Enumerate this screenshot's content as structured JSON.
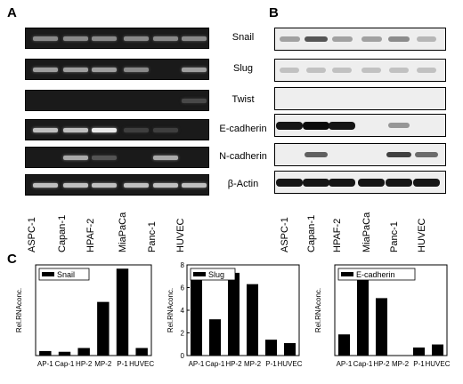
{
  "panels": {
    "a": "A",
    "b": "B",
    "c": "C"
  },
  "lanes": [
    "ASPC-1",
    "Capan-1",
    "HPAF-2",
    "MiaPaCa",
    "Panc-1",
    "HUVEC"
  ],
  "genes": [
    "Snail",
    "Slug",
    "Twist",
    "E-cadherin",
    "N-cadherin",
    "β-Actin"
  ],
  "gel_intensity": [
    [
      0.45,
      0.45,
      0.45,
      0.45,
      0.45,
      0.45
    ],
    [
      0.55,
      0.55,
      0.55,
      0.45,
      0.0,
      0.55
    ],
    [
      0.0,
      0.0,
      0.0,
      0.0,
      0.0,
      0.15
    ],
    [
      0.7,
      0.7,
      0.9,
      0.1,
      0.1,
      0.0
    ],
    [
      0.0,
      0.6,
      0.2,
      0.0,
      0.6,
      0.0
    ],
    [
      0.7,
      0.7,
      0.7,
      0.7,
      0.7,
      0.7
    ]
  ],
  "blot_intensity": [
    [
      0.3,
      0.65,
      0.3,
      0.3,
      0.4,
      0.2
    ],
    [
      0.15,
      0.15,
      0.15,
      0.15,
      0.15,
      0.15
    ],
    [
      0.0,
      0.0,
      0.0,
      0.0,
      0.0,
      0.0
    ],
    [
      0.95,
      1.0,
      0.95,
      0.0,
      0.35,
      0.0
    ],
    [
      0.0,
      0.6,
      0.0,
      0.0,
      0.75,
      0.55
    ],
    [
      0.95,
      0.95,
      0.95,
      0.95,
      0.95,
      0.95
    ]
  ],
  "chart_data": [
    {
      "type": "bar",
      "legend": "Snail",
      "ylabel": "Rel.RNAconc.",
      "categories": [
        "AP-1",
        "Cap-1",
        "HP-2",
        "MP-2",
        "P-1",
        "HUVEC"
      ],
      "values": [
        0.6,
        0.5,
        1.0,
        7.1,
        11.5,
        1.0
      ],
      "ylim": [
        0,
        12
      ],
      "yticks": []
    },
    {
      "type": "bar",
      "legend": "Slug",
      "ylabel": "Rel.RNAconc.",
      "categories": [
        "AP-1",
        "Cap-1",
        "HP-2",
        "MP-2",
        "P-1",
        "HUVEC"
      ],
      "values": [
        7.0,
        3.2,
        7.3,
        6.3,
        1.4,
        1.1
      ],
      "ylim": [
        0,
        8
      ],
      "yticks": [
        "0",
        "2",
        "4",
        "6",
        "8"
      ]
    },
    {
      "type": "bar",
      "legend": "E-cadherin",
      "ylabel": "Rel.RNAconc.",
      "categories": [
        "AP-1",
        "Cap-1",
        "HP-2",
        "MP-2",
        "P-1",
        "HUVEC"
      ],
      "values": [
        2.1,
        7.7,
        5.7,
        0.0,
        0.8,
        1.1
      ],
      "ylim": [
        0,
        9
      ],
      "yticks": []
    }
  ]
}
